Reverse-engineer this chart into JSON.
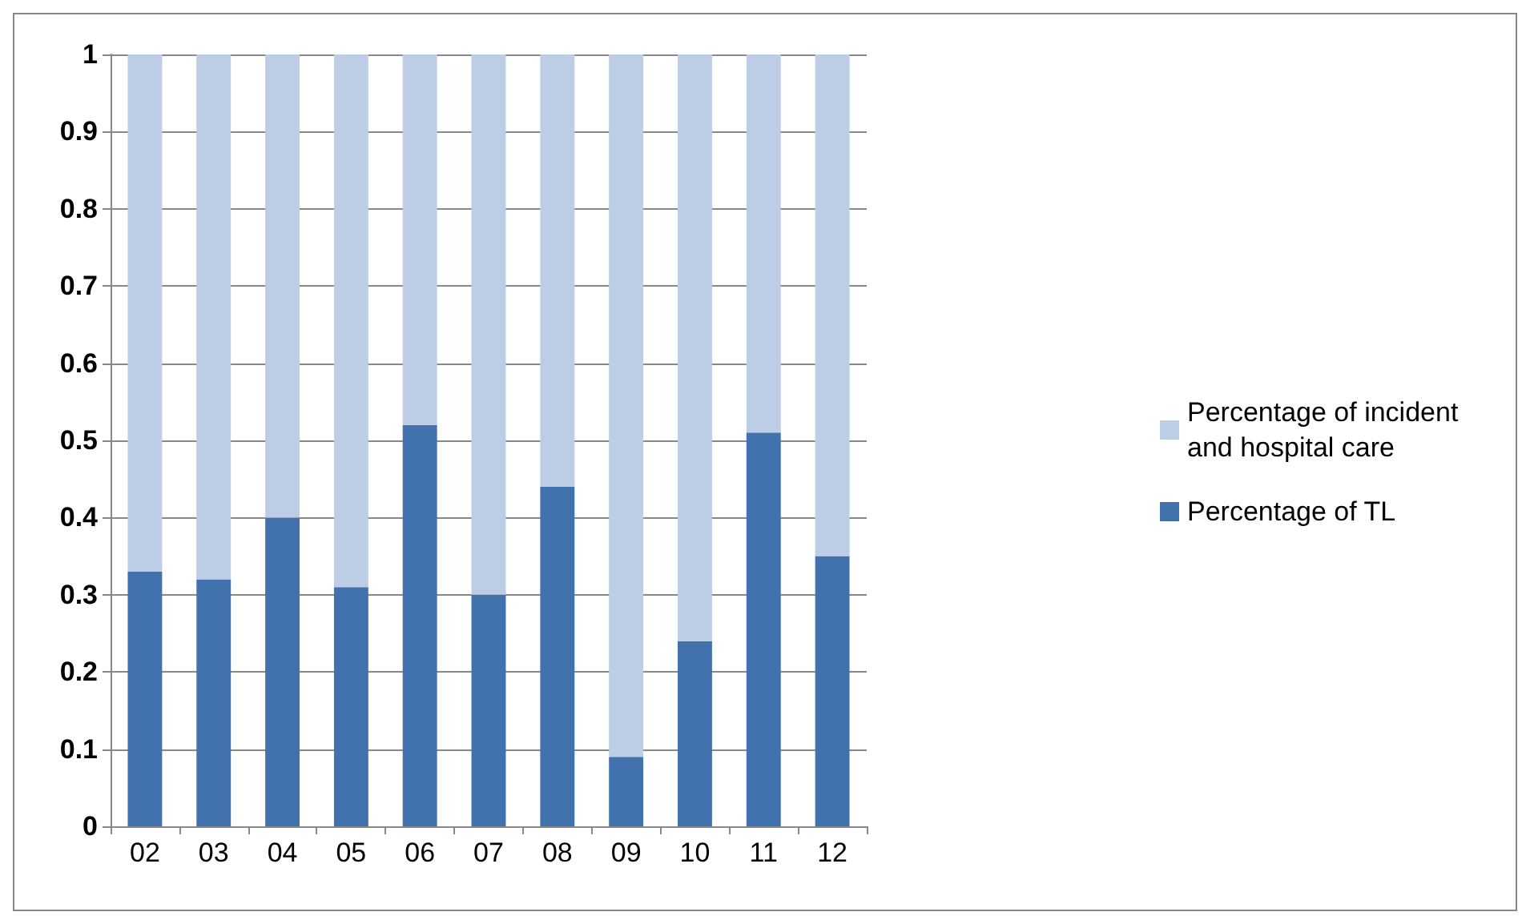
{
  "chart_data": {
    "type": "bar",
    "stacked": true,
    "categories": [
      "02",
      "03",
      "04",
      "05",
      "06",
      "07",
      "08",
      "09",
      "10",
      "11",
      "12"
    ],
    "series": [
      {
        "name": "Percentage of TL",
        "color": "#4172ad",
        "values": [
          0.33,
          0.32,
          0.4,
          0.31,
          0.52,
          0.3,
          0.44,
          0.09,
          0.24,
          0.51,
          0.35
        ]
      },
      {
        "name": "Percentage of incident and hospital care",
        "color": "#bccde5",
        "values": [
          0.67,
          0.68,
          0.6,
          0.69,
          0.48,
          0.7,
          0.56,
          0.91,
          0.76,
          0.49,
          0.65
        ]
      }
    ],
    "ylim": [
      0,
      1
    ],
    "yticks": [
      0,
      0.1,
      0.2,
      0.3,
      0.4,
      0.5,
      0.6,
      0.7,
      0.8,
      0.9,
      1
    ],
    "grid": "y",
    "legend": "right"
  }
}
